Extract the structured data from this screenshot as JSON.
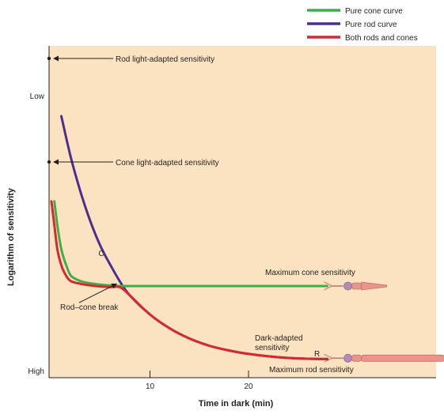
{
  "chart_data": {
    "type": "line",
    "xlabel": "Time in dark (min)",
    "ylabel": "Logarithm of sensitivity",
    "xticks": [
      10,
      20
    ],
    "xlim": [
      0,
      36
    ],
    "y_scale": "log sensitivity threshold (up = lower sensitivity)",
    "ylim": [
      0,
      10
    ],
    "y_end_labels": {
      "top": "Low",
      "bottom": "High"
    },
    "grid": false,
    "legend_position": "top-right",
    "series": [
      {
        "name": "Pure cone curve",
        "color": "#3fae49",
        "x": [
          0.3,
          0.6,
          1,
          1.5,
          2,
          3,
          4,
          5,
          6,
          7,
          8,
          10,
          14,
          18,
          22,
          26,
          28
        ],
        "y": [
          6.0,
          5.1,
          4.2,
          3.6,
          3.2,
          3.0,
          2.92,
          2.87,
          2.84,
          2.82,
          2.82,
          2.82,
          2.82,
          2.82,
          2.82,
          2.82,
          2.82
        ]
      },
      {
        "name": "Pure rod curve",
        "color": "#4b2f8f",
        "x": [
          1,
          2,
          3,
          4,
          5,
          6,
          7,
          8,
          10,
          12,
          14,
          16,
          18,
          20,
          22,
          24,
          26,
          28
        ],
        "y": [
          9.2,
          7.6,
          6.3,
          5.2,
          4.3,
          3.6,
          2.96,
          2.45,
          1.75,
          1.23,
          0.85,
          0.58,
          0.4,
          0.27,
          0.18,
          0.12,
          0.09,
          0.08
        ]
      },
      {
        "name": "Both rods and cones",
        "color": "#d7282f",
        "x": [
          0,
          0.3,
          0.6,
          1,
          1.5,
          2,
          3,
          4,
          5,
          6,
          7,
          8,
          10,
          12,
          14,
          16,
          18,
          20,
          22,
          24,
          26,
          28
        ],
        "y": [
          6.0,
          5.1,
          4.2,
          3.6,
          3.2,
          3.0,
          2.9,
          2.84,
          2.8,
          2.78,
          2.77,
          2.45,
          1.75,
          1.23,
          0.85,
          0.58,
          0.4,
          0.27,
          0.18,
          0.12,
          0.09,
          0.07
        ]
      }
    ],
    "annotations": {
      "rod_light_adapted": "Rod light-adapted sensitivity",
      "cone_light_adapted": "Cone light-adapted sensitivity",
      "rod_cone_break": "Rod–cone break",
      "point_c": "C",
      "max_cone": "Maximum cone sensitivity",
      "dark_adapted_1": "Dark-adapted",
      "dark_adapted_2": "sensitivity",
      "point_r": "R",
      "max_rod": "Maximum rod sensitivity"
    },
    "colors": {
      "plot_background": "#fbe3c1",
      "rod_cell": "#e9958b",
      "cone_cell": "#e9958b"
    }
  }
}
